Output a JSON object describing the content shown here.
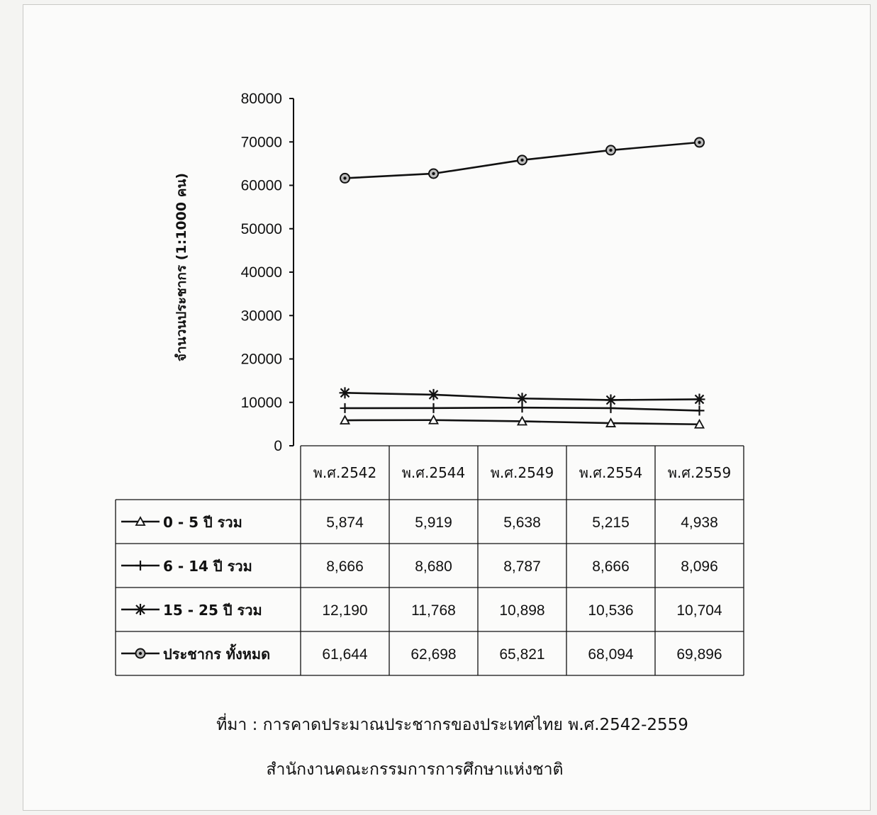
{
  "chart_data": {
    "type": "line",
    "ylabel": "จำนวนประชากร  (1:1000 คน)",
    "ylim": [
      0,
      80000
    ],
    "yticks": [
      "80000",
      "70000",
      "60000",
      "50000",
      "40000",
      "30000",
      "20000",
      "10000",
      "0"
    ],
    "categories": [
      "พ.ศ.2542",
      "พ.ศ.2544",
      "พ.ศ.2549",
      "พ.ศ.2554",
      "พ.ศ.2559"
    ],
    "series": [
      {
        "name": "0 - 5 ปี รวม",
        "marker": "triangle",
        "values": [
          5874,
          5919,
          5638,
          5215,
          4938
        ],
        "labels": [
          "5,874",
          "5,919",
          "5,638",
          "5,215",
          "4,938"
        ]
      },
      {
        "name": "6 - 14 ปี รวม",
        "marker": "plus",
        "values": [
          8666,
          8680,
          8787,
          8666,
          8096
        ],
        "labels": [
          "8,666",
          "8,680",
          "8,787",
          "8,666",
          "8,096"
        ]
      },
      {
        "name": "15 - 25 ปี รวม",
        "marker": "asterisk",
        "values": [
          12190,
          11768,
          10898,
          10536,
          10704
        ],
        "labels": [
          "12,190",
          "11,768",
          "10,898",
          "10,536",
          "10,704"
        ]
      },
      {
        "name": "ประชากร ทั้งหมด",
        "marker": "circle",
        "values": [
          61644,
          62698,
          65821,
          68094,
          69896
        ],
        "labels": [
          "61,644",
          "62,698",
          "65,821",
          "68,094",
          "69,896"
        ]
      }
    ],
    "table": true,
    "grid": false,
    "colors": {
      "line": "#111111",
      "background": "#fbfbfa"
    }
  },
  "source": {
    "line1": "ที่มา :  การคาดประมาณประชากรของประเทศไทย พ.ศ.2542-2559",
    "line2": "สำนักงานคณะกรรมการการศึกษาแห่งชาติ"
  }
}
